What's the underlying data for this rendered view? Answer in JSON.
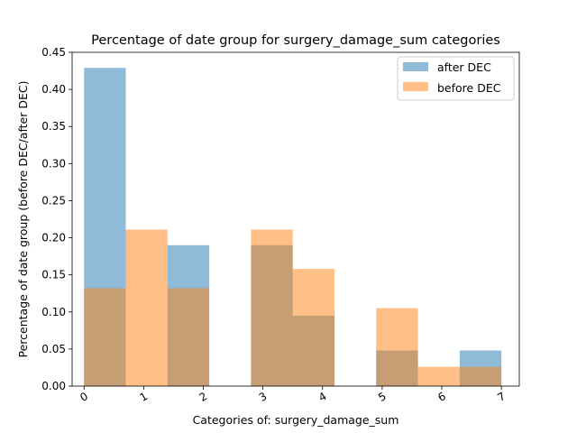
{
  "chart_data": {
    "type": "bar",
    "title": "Percentage of date group for surgery_damage_sum categories",
    "xlabel": "Categories of: surgery_damage_sum",
    "ylabel": "Percentage of date group (before DEC/after DEC)",
    "xlim": [
      -0.2,
      7.3
    ],
    "ylim": [
      0,
      0.45
    ],
    "x_ticks": [
      "0",
      "1",
      "2",
      "3",
      "4",
      "5",
      "6",
      "7"
    ],
    "y_ticks": [
      "0.00",
      "0.05",
      "0.10",
      "0.15",
      "0.20",
      "0.25",
      "0.30",
      "0.35",
      "0.40",
      "0.45"
    ],
    "bin_edges": [
      0,
      0.7,
      1.4,
      2.1,
      2.8,
      3.5,
      4.2,
      4.9,
      5.6,
      6.3,
      7.0
    ],
    "legend_position": "top-right",
    "grid": false,
    "series": [
      {
        "name": "after DEC",
        "color": "#1f77b4",
        "opacity": 0.5,
        "values": [
          0.429,
          0.0,
          0.19,
          0.0,
          0.19,
          0.095,
          0.0,
          0.048,
          0.0,
          0.048
        ]
      },
      {
        "name": "before DEC",
        "color": "#ff7f0e",
        "opacity": 0.5,
        "values": [
          0.132,
          0.211,
          0.132,
          0.0,
          0.211,
          0.158,
          0.0,
          0.105,
          0.026,
          0.026
        ]
      }
    ]
  }
}
